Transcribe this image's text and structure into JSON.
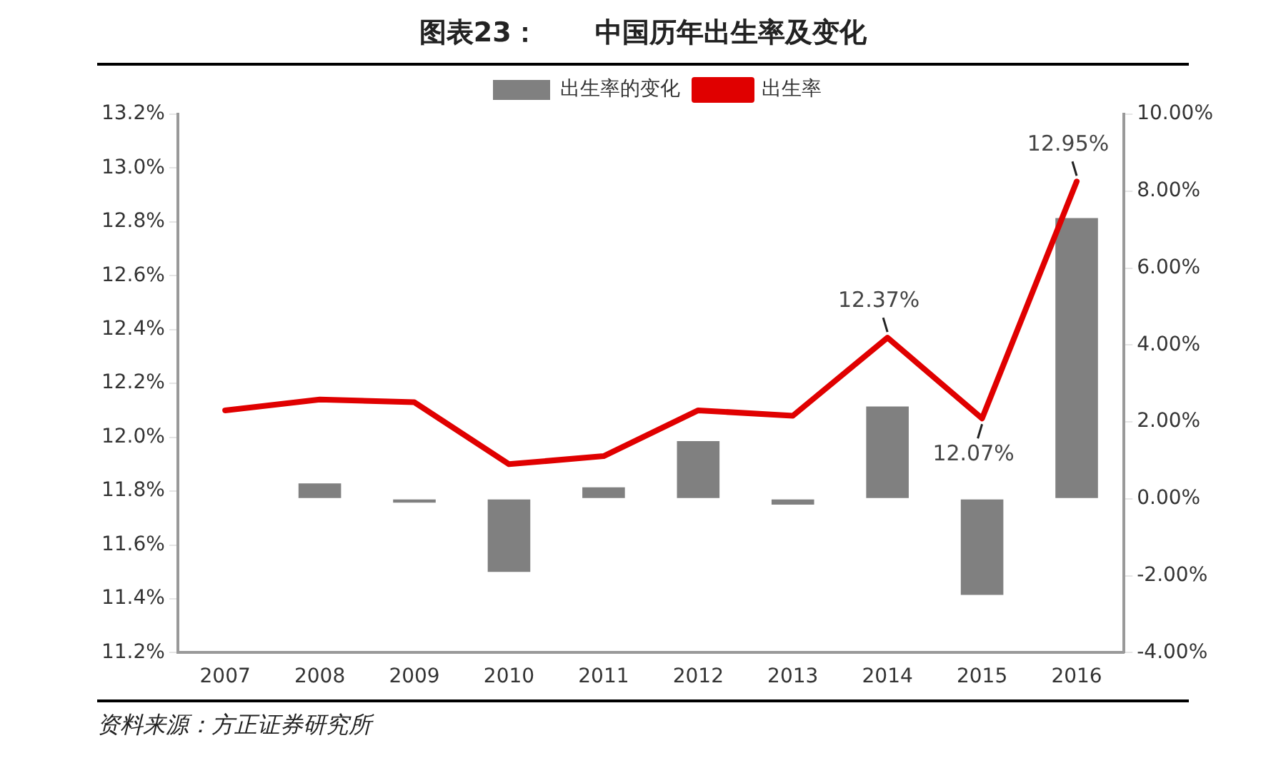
{
  "chart_data": {
    "type": "bar",
    "title": "图表23：      中国历年出生率及变化",
    "annotations": [
      "资料来源：方正证券研究所"
    ],
    "categories": [
      "2007",
      "2008",
      "2009",
      "2010",
      "2011",
      "2012",
      "2013",
      "2014",
      "2015",
      "2016"
    ],
    "series": [
      {
        "name": "出生率的变化",
        "type": "bar",
        "axis": "y2",
        "color": "#808080",
        "values": [
          null,
          0.4,
          -0.1,
          -1.9,
          0.3,
          1.5,
          -0.15,
          2.4,
          -2.5,
          7.3
        ]
      },
      {
        "name": "出生率",
        "type": "line",
        "axis": "y",
        "color": "#e00000",
        "marker": "none",
        "values": [
          12.1,
          12.14,
          12.13,
          11.9,
          11.93,
          12.1,
          12.08,
          12.37,
          12.07,
          12.95
        ],
        "value_labels": [
          null,
          null,
          null,
          null,
          null,
          null,
          null,
          "12.37%",
          "12.07%",
          "12.95%"
        ]
      }
    ],
    "ylim": [
      11.2,
      13.2
    ],
    "yticks": [
      {
        "value": 11.2,
        "label": "11.2%"
      },
      {
        "value": 11.4,
        "label": "11.4%"
      },
      {
        "value": 11.6,
        "label": "11.6%"
      },
      {
        "value": 11.8,
        "label": "11.8%"
      },
      {
        "value": 12.0,
        "label": "12.0%"
      },
      {
        "value": 12.2,
        "label": "12.2%"
      },
      {
        "value": 12.4,
        "label": "12.4%"
      },
      {
        "value": 12.6,
        "label": "12.6%"
      },
      {
        "value": 12.8,
        "label": "12.8%"
      },
      {
        "value": 13.0,
        "label": "13.0%"
      },
      {
        "value": 13.2,
        "label": "13.2%"
      }
    ],
    "y2lim": [
      -4,
      10
    ],
    "y2ticks": [
      {
        "value": -4,
        "label": "-4.00%"
      },
      {
        "value": -2,
        "label": "-2.00%"
      },
      {
        "value": 0,
        "label": "0.00%"
      },
      {
        "value": 2,
        "label": "2.00%"
      },
      {
        "value": 4,
        "label": "4.00%"
      },
      {
        "value": 6,
        "label": "6.00%"
      },
      {
        "value": 8,
        "label": "8.00%"
      },
      {
        "value": 10,
        "label": "10.00%"
      }
    ],
    "grid": false,
    "legend": "top"
  }
}
